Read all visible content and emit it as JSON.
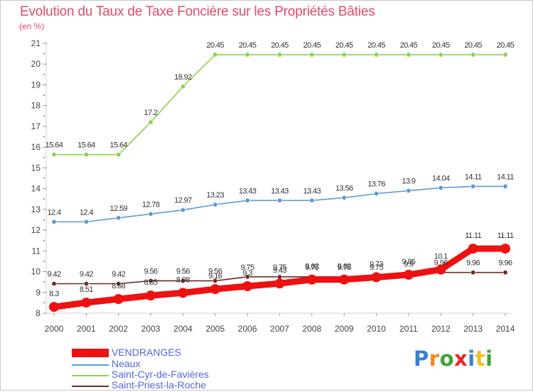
{
  "chart_data": {
    "type": "line",
    "title": "Evolution du Taux de Taxe Foncière sur les Propriétés Bâties",
    "ylabel": "(en %)",
    "xlabel": "",
    "ylim": [
      8,
      21
    ],
    "yticks": [
      "8",
      "9",
      "10",
      "11",
      "12",
      "13",
      "14",
      "15",
      "16",
      "17",
      "18",
      "19",
      "20",
      "21"
    ],
    "categories": [
      "2000",
      "2001",
      "2002",
      "2003",
      "2004",
      "2005",
      "2006",
      "2007",
      "2008",
      "2009",
      "2010",
      "2011",
      "2012",
      "2013",
      "2014"
    ],
    "grid": false,
    "legend_position": "bottom-left",
    "series": [
      {
        "name": "Saint-Priest-la-Roche",
        "color": "#6b2a2a",
        "values": [
          9.42,
          9.42,
          9.42,
          9.56,
          9.56,
          9.56,
          9.75,
          9.75,
          9.75,
          9.75,
          9.75,
          9.9,
          9.96,
          9.96,
          9.96
        ],
        "labels": [
          "9.42",
          "9.42",
          "9.42",
          "9.56",
          "9.56",
          "9.56",
          "9.75",
          "9.75",
          "9.75",
          "9.75",
          "9.75",
          "9.9",
          "9.96",
          "9.96",
          "9.96"
        ]
      },
      {
        "name": "Neaux",
        "color": "#5b9bd5",
        "values": [
          12.4,
          12.4,
          12.59,
          12.78,
          12.97,
          13.23,
          13.43,
          13.43,
          13.43,
          13.56,
          13.76,
          13.9,
          14.04,
          14.11,
          14.11
        ],
        "labels": [
          "12.4",
          "12.4",
          "12.59",
          "12.78",
          "12.97",
          "13.23",
          "13.43",
          "13.43",
          "13.43",
          "13.56",
          "13.76",
          "13.9",
          "14.04",
          "14.11",
          "14.11"
        ]
      },
      {
        "name": "Saint-Cyr-de-Favières",
        "color": "#8ed14a",
        "values": [
          15.64,
          15.64,
          15.64,
          17.2,
          18.92,
          20.45,
          20.45,
          20.45,
          20.45,
          20.45,
          20.45,
          20.45,
          20.45,
          20.45,
          20.45
        ],
        "labels": [
          "15.64",
          "15.64",
          "15.64",
          "17.2",
          "18.92",
          "20.45",
          "20.45",
          "20.45",
          "20.45",
          "20.45",
          "20.45",
          "20.45",
          "20.45",
          "20.45",
          "20.45"
        ]
      },
      {
        "name": "VENDRANGES",
        "color": "#ee1111",
        "values": [
          8.3,
          8.51,
          8.68,
          8.85,
          8.98,
          9.16,
          9.3,
          9.43,
          9.62,
          9.62,
          9.73,
          9.85,
          10.1,
          11.11,
          11.11
        ],
        "labels": [
          "8.3",
          "8.51",
          "8.68",
          "8.85",
          "8.98",
          "9.16",
          "9.3",
          "9.43",
          "9.62",
          "9.62",
          "9.73",
          "9.85",
          "10.1",
          "11.11",
          "11.11"
        ]
      }
    ]
  },
  "legend": [
    {
      "name": "VENDRANGES",
      "color": "#ee1111",
      "text_color": "#5566dd"
    },
    {
      "name": "Neaux",
      "color": "#5b9bd5",
      "text_color": "#5566dd"
    },
    {
      "name": "Saint-Cyr-de-Favières",
      "color": "#8ed14a",
      "text_color": "#5566dd"
    },
    {
      "name": "Saint-Priest-la-Roche",
      "color": "#6b2a2a",
      "text_color": "#5566dd"
    }
  ],
  "logo": {
    "letters": [
      "P",
      "r",
      "o",
      "x",
      "i",
      "t",
      "i"
    ],
    "colors": [
      "#3a7fd0",
      "#f08a1c",
      "#3fa33a",
      "#e8242a",
      "#3a7fd0",
      "#f0c21c",
      "#3fa33a"
    ]
  }
}
